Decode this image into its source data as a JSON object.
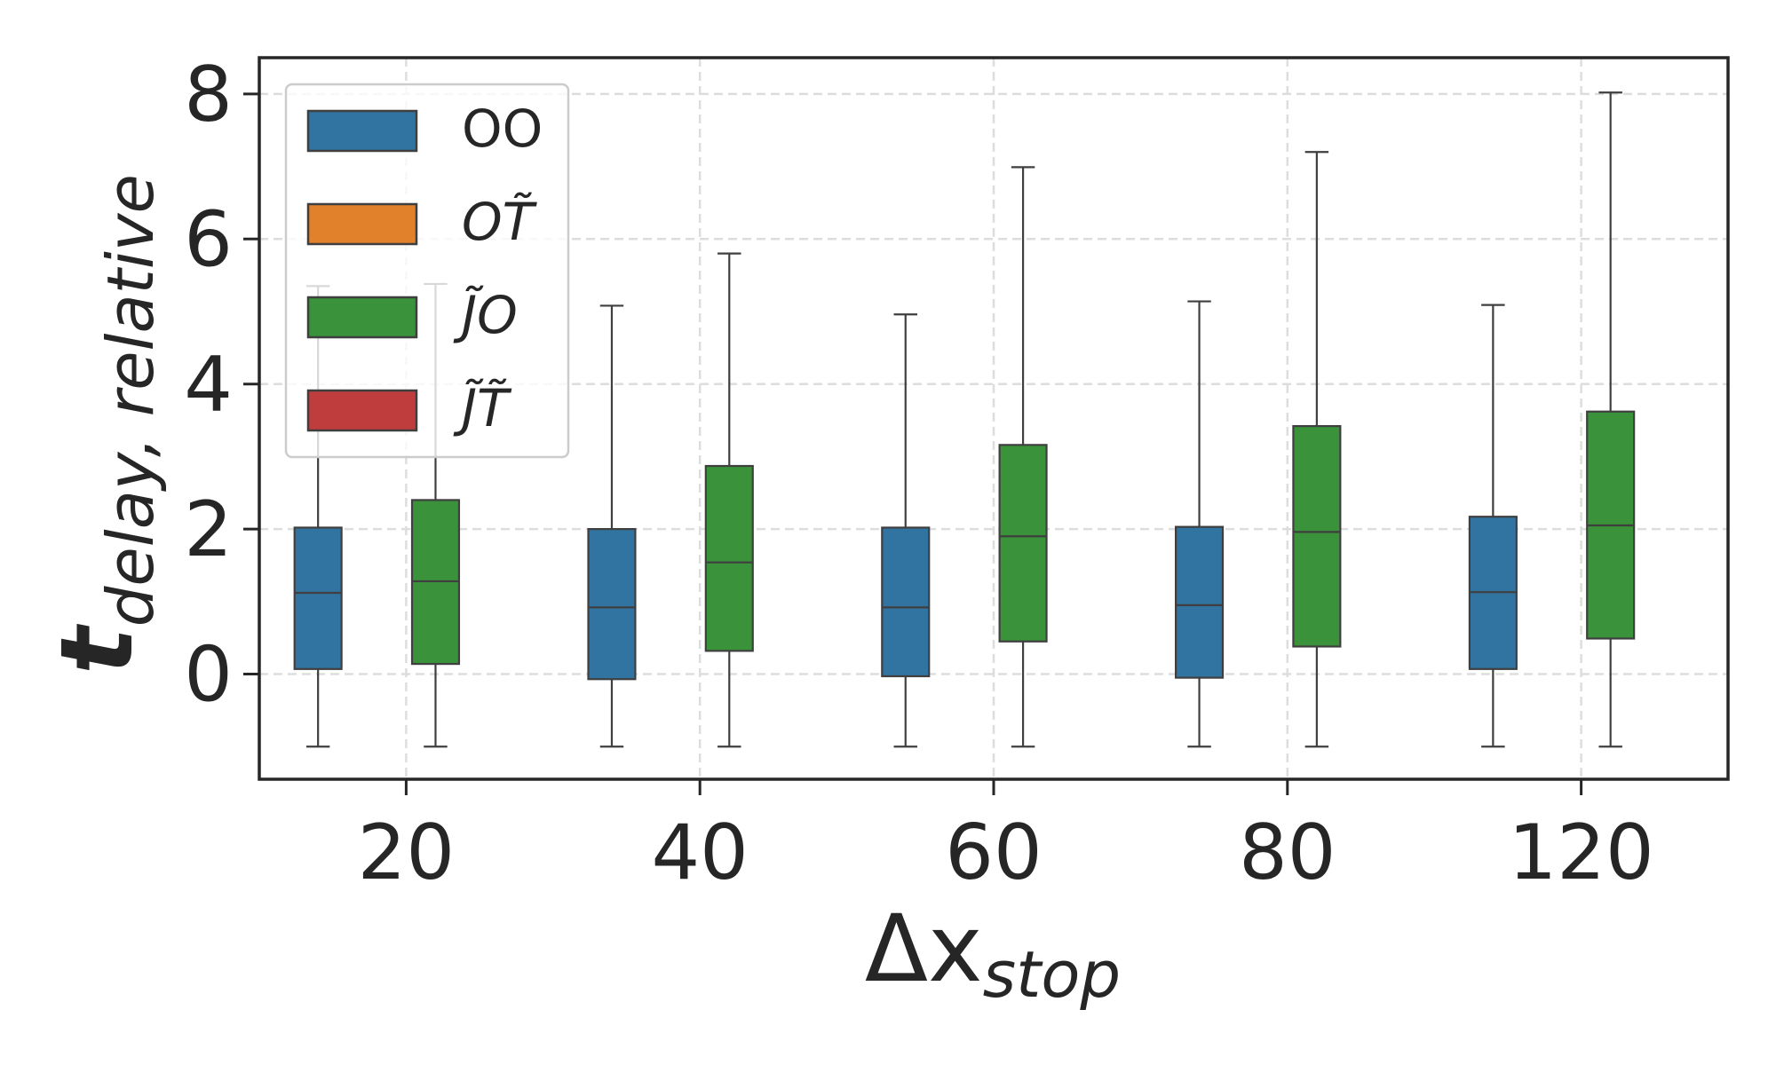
{
  "chart_data": {
    "type": "box",
    "xlabel": "Δx",
    "xlabel_sub": "stop",
    "ylabel": "t",
    "ylabel_sub": "delay, relative",
    "categories": [
      "20",
      "40",
      "60",
      "80",
      "120"
    ],
    "ylim": [
      -1.45,
      8.5
    ],
    "yticks": [
      0,
      2,
      4,
      6,
      8
    ],
    "grid": true,
    "legend_position": "upper-left",
    "legend": [
      {
        "name": "OO",
        "color": "#3274a1"
      },
      {
        "name": "OT̃",
        "color": "#e1812c"
      },
      {
        "name": "J̃O",
        "color": "#3a923a"
      },
      {
        "name": "J̃T̃",
        "color": "#c03d3e"
      }
    ],
    "series": [
      {
        "name": "OO",
        "color": "#3274a1",
        "boxes": [
          {
            "category": "20",
            "whisker_low": -1.0,
            "q1": 0.07,
            "median": 1.12,
            "q3": 2.02,
            "whisker_high": 5.35
          },
          {
            "category": "40",
            "whisker_low": -1.0,
            "q1": -0.07,
            "median": 0.92,
            "q3": 2.0,
            "whisker_high": 5.08
          },
          {
            "category": "60",
            "whisker_low": -1.0,
            "q1": -0.03,
            "median": 0.92,
            "q3": 2.02,
            "whisker_high": 4.96
          },
          {
            "category": "80",
            "whisker_low": -1.0,
            "q1": -0.05,
            "median": 0.95,
            "q3": 2.03,
            "whisker_high": 5.14
          },
          {
            "category": "120",
            "whisker_low": -1.0,
            "q1": 0.07,
            "median": 1.13,
            "q3": 2.17,
            "whisker_high": 5.09
          }
        ]
      },
      {
        "name": "J̃O",
        "color": "#3a923a",
        "boxes": [
          {
            "category": "20",
            "whisker_low": -1.0,
            "q1": 0.14,
            "median": 1.28,
            "q3": 2.4,
            "whisker_high": 5.38
          },
          {
            "category": "40",
            "whisker_low": -1.0,
            "q1": 0.32,
            "median": 1.54,
            "q3": 2.87,
            "whisker_high": 5.8
          },
          {
            "category": "60",
            "whisker_low": -1.0,
            "q1": 0.45,
            "median": 1.9,
            "q3": 3.16,
            "whisker_high": 6.99
          },
          {
            "category": "80",
            "whisker_low": -1.0,
            "q1": 0.38,
            "median": 1.96,
            "q3": 3.42,
            "whisker_high": 7.2
          },
          {
            "category": "120",
            "whisker_low": -1.0,
            "q1": 0.49,
            "median": 2.05,
            "q3": 3.62,
            "whisker_high": 8.02
          }
        ]
      }
    ]
  }
}
